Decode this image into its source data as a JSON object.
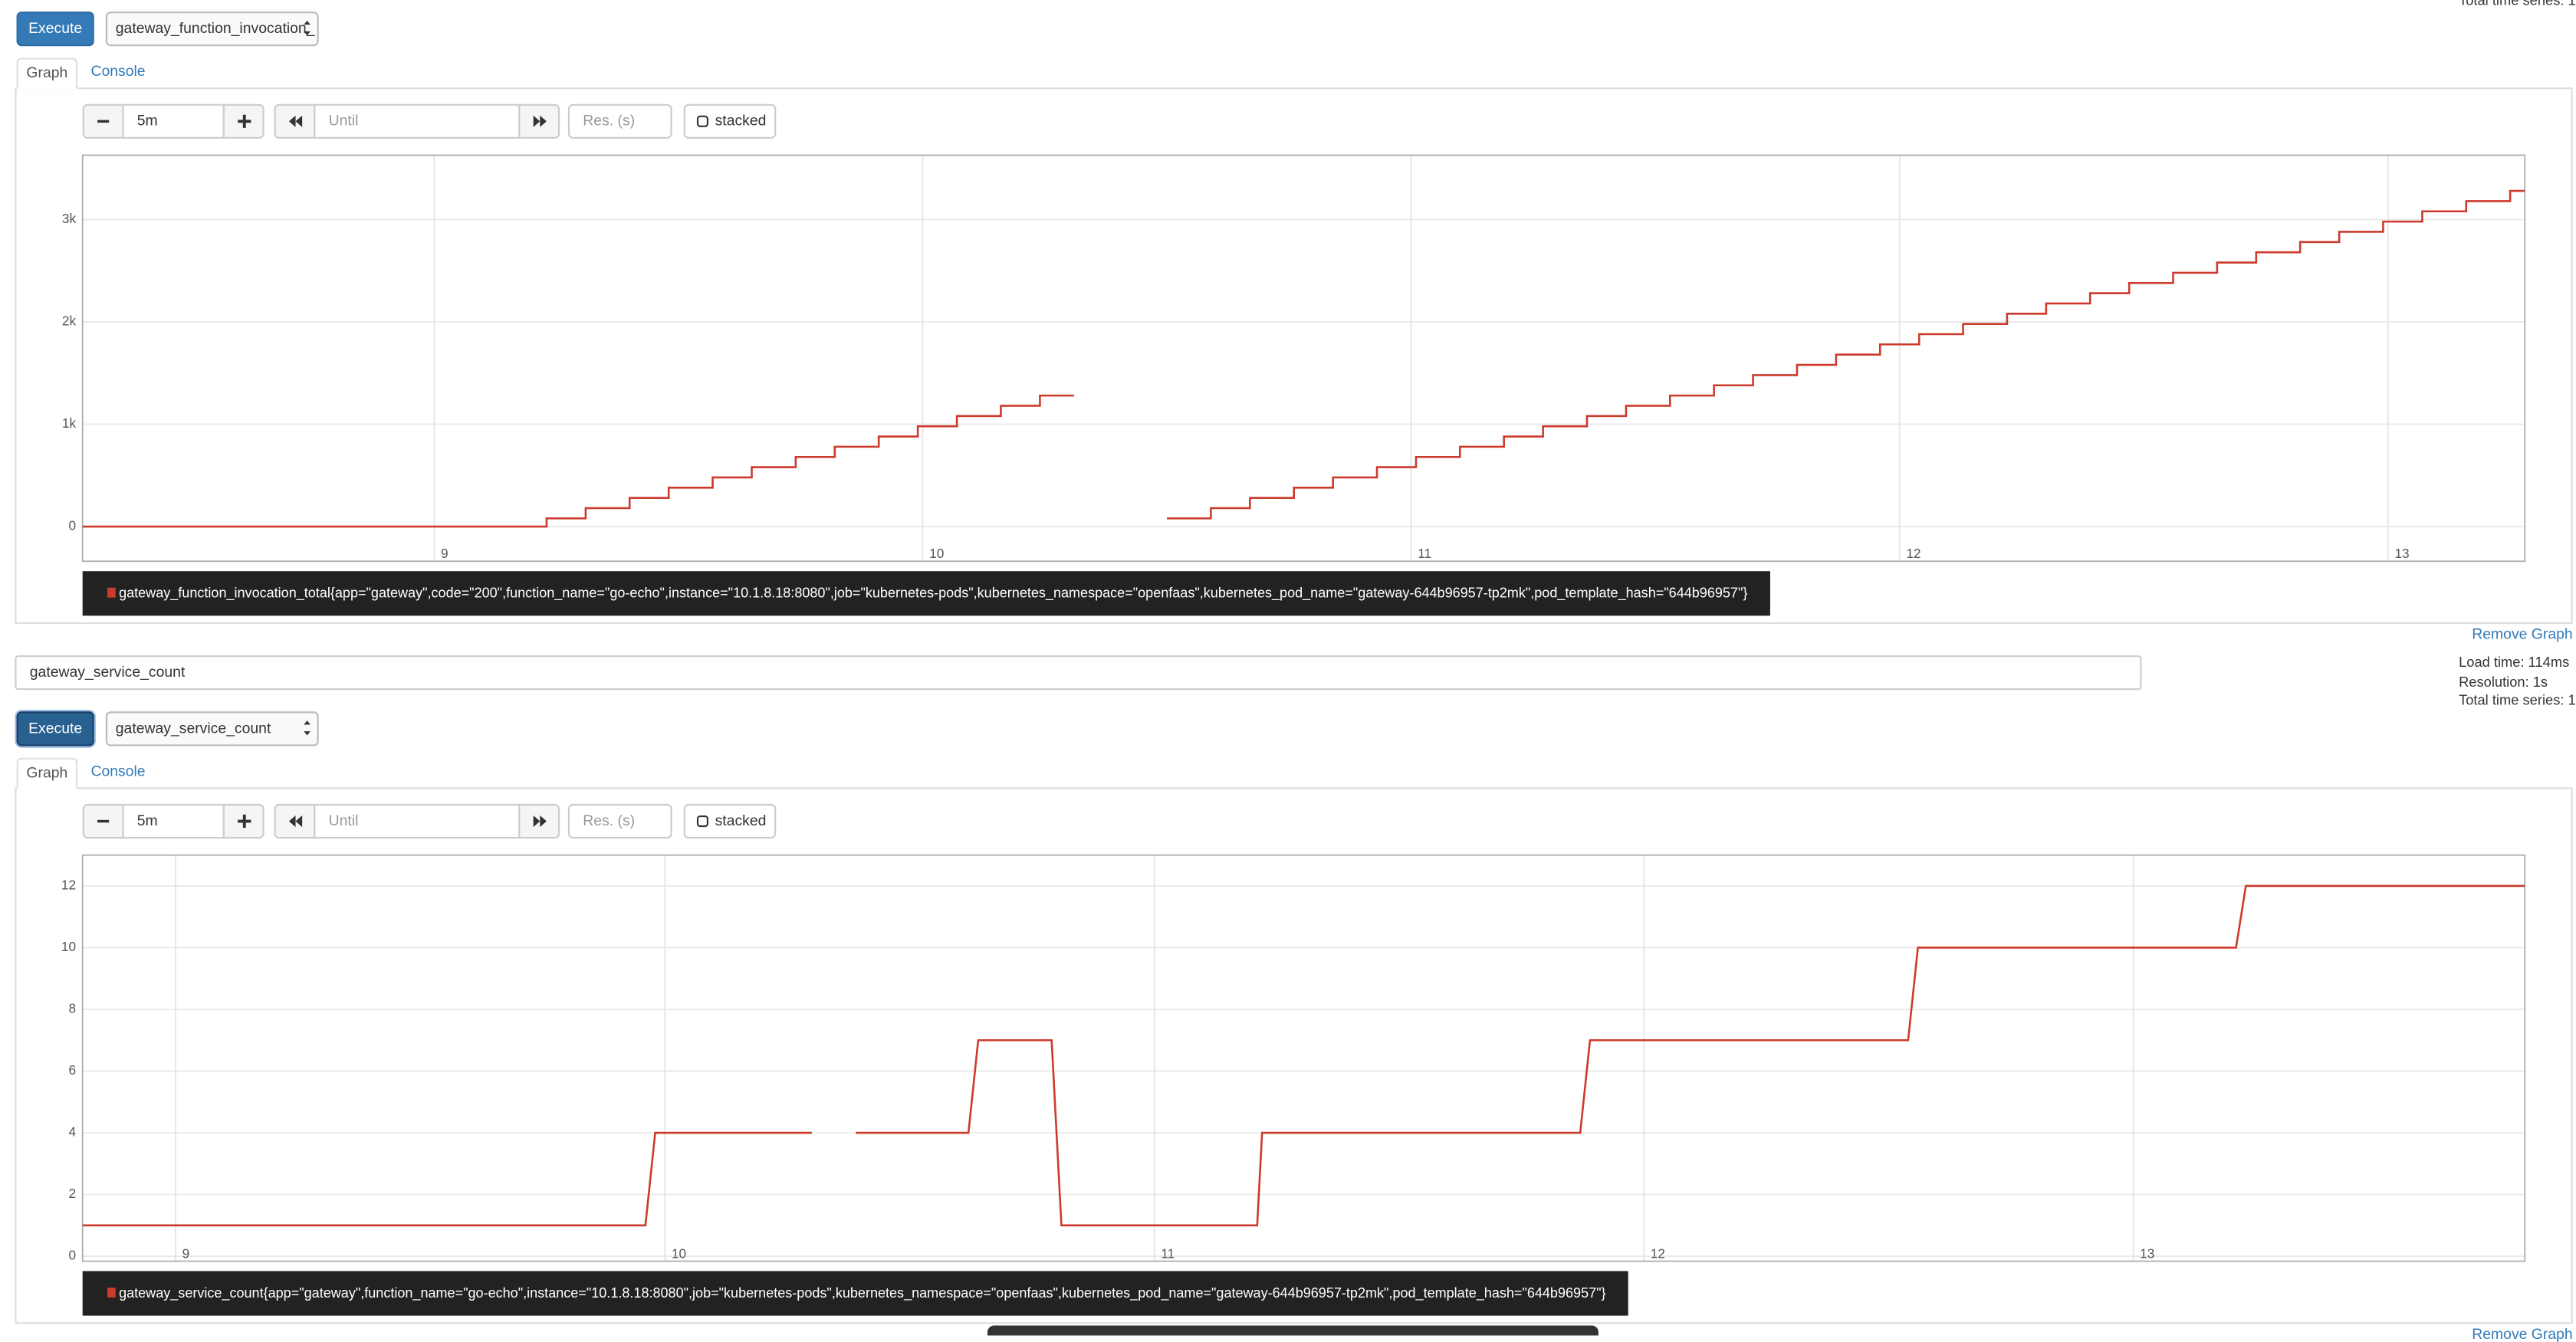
{
  "panels": [
    {
      "stats": [
        "Total time series: 1"
      ],
      "execute": "Execute",
      "select": "gateway_function_invocation_",
      "tabs": [
        "Graph",
        "Console"
      ],
      "controls": {
        "range": "5m",
        "until": "Until",
        "resolution": "Res. (s)",
        "stacked": "stacked"
      },
      "chart_data": {
        "type": "line",
        "step": true,
        "grid": true,
        "xlim": [
          8.28,
          13.28
        ],
        "xticks": [
          9,
          10,
          11,
          12,
          13
        ],
        "ylim": [
          -339,
          3629
        ],
        "yticks": [
          0,
          {
            "value": 1000,
            "label": "1k"
          },
          {
            "value": 2000,
            "label": "2k"
          },
          {
            "value": 3000,
            "label": "3k"
          }
        ],
        "x": [
          8.28,
          9.23,
          9.31,
          9.4,
          9.48,
          9.57,
          9.65,
          9.74,
          9.82,
          9.91,
          9.99,
          10.07,
          10.16,
          10.24,
          10.31,
          10.4,
          10.5,
          10.59,
          10.67,
          10.76,
          10.84,
          10.93,
          11.01,
          11.1,
          11.19,
          11.27,
          11.36,
          11.44,
          11.53,
          11.62,
          11.7,
          11.79,
          11.87,
          11.96,
          12.04,
          12.13,
          12.22,
          12.3,
          12.39,
          12.47,
          12.56,
          12.65,
          12.73,
          12.82,
          12.9,
          12.99,
          13.07,
          13.16,
          13.25,
          13.28
        ],
        "series": [
          {
            "name": "gateway_function_invocation_total{app=\"gateway\",code=\"200\",function_name=\"go-echo\",instance=\"10.1.8.18:8080\",job=\"kubernetes-pods\",kubernetes_namespace=\"openfaas\",kubernetes_pod_name=\"gateway-644b96957-tp2mk\",pod_template_hash=\"644b96957\"}",
            "color": "#cc3a2c",
            "values": [
              0,
              80,
              180,
              280,
              380,
              480,
              580,
              680,
              780,
              880,
              980,
              1080,
              1180,
              1280,
              1280,
              null,
              80,
              180,
              280,
              380,
              480,
              580,
              680,
              780,
              880,
              980,
              1080,
              1180,
              1280,
              1380,
              1480,
              1580,
              1680,
              1780,
              1880,
              1980,
              2080,
              2180,
              2280,
              2380,
              2480,
              2580,
              2680,
              2780,
              2880,
              2980,
              3080,
              3180,
              3280,
              3280
            ]
          }
        ]
      },
      "remove": "Remove Graph"
    },
    {
      "expression": "gateway_service_count",
      "stats": [
        "Load time: 114ms",
        "Resolution: 1s",
        "Total time series: 1"
      ],
      "execute": "Execute",
      "select": "gateway_service_count",
      "tabs": [
        "Graph",
        "Console"
      ],
      "controls": {
        "range": "5m",
        "until": "Until",
        "resolution": "Res. (s)",
        "stacked": "stacked"
      },
      "chart_data": {
        "type": "line",
        "step": false,
        "grid": true,
        "xlim": [
          8.81,
          13.8
        ],
        "xticks": [
          9,
          10,
          11,
          12,
          13
        ],
        "ylim": [
          -0.16,
          13
        ],
        "yticks": [
          0,
          2,
          4,
          6,
          8,
          10,
          12
        ],
        "x": [
          8.81,
          9.96,
          9.98,
          10.3,
          10.35,
          10.39,
          10.62,
          10.64,
          10.79,
          10.81,
          11.21,
          11.22,
          11.87,
          11.89,
          12.54,
          12.56,
          13.21,
          13.23,
          13.8
        ],
        "series": [
          {
            "name": "gateway_service_count{app=\"gateway\",function_name=\"go-echo\",instance=\"10.1.8.18:8080\",job=\"kubernetes-pods\",kubernetes_namespace=\"openfaas\",kubernetes_pod_name=\"gateway-644b96957-tp2mk\",pod_template_hash=\"644b96957\"}",
            "color": "#cc3a2c",
            "values": [
              1,
              1,
              4,
              4,
              null,
              4,
              4,
              7,
              7,
              1,
              1,
              4,
              4,
              7,
              7,
              10,
              10,
              12,
              12
            ]
          }
        ]
      },
      "remove": "Remove Graph"
    }
  ]
}
